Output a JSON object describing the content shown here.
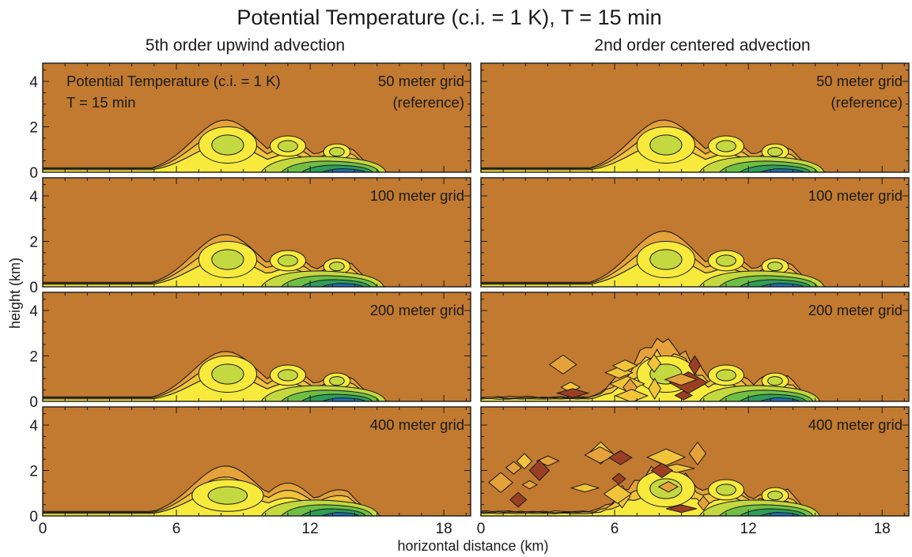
{
  "title": "Potential Temperature (c.i. = 1 K), T = 15 min",
  "columns": [
    "5th order upwind advection",
    "2nd order centered advection"
  ],
  "colors": {
    "background": "#c17a30",
    "band1": "#e6a23a",
    "band2": "#f1c43a",
    "band3": "#f8ea3c",
    "band4": "#c4d840",
    "band5": "#6fbf45",
    "band6": "#2f9e58",
    "band7": "#1f6fb3",
    "cold_anomaly": "#9b3f22",
    "contour": "#1a1a1a"
  },
  "chart_data": {
    "type": "heatmap",
    "title": "Potential Temperature (c.i. = 1 K), T = 15 min",
    "xlabel": "horizontal distance (km)",
    "ylabel": "height (km)",
    "xlim": [
      0,
      19.2
    ],
    "ylim": [
      0,
      4.8
    ],
    "xticks": [
      0,
      6,
      12,
      18
    ],
    "yticks": [
      0,
      2,
      4
    ],
    "contour_interval_K": 1,
    "panels": [
      {
        "column": "5th order upwind advection",
        "row": 0,
        "label": [
          "Potential Temperature (c.i. = 1 K)",
          "T = 15 min",
          "50 meter grid",
          "(reference)"
        ],
        "front_km": 15.5,
        "head_top_km": 2.3,
        "noisy": false
      },
      {
        "column": "2nd order centered advection",
        "row": 0,
        "label": [
          "50 meter grid",
          "(reference)"
        ],
        "front_km": 15.5,
        "head_top_km": 2.3,
        "noisy": false
      },
      {
        "column": "5th order upwind advection",
        "row": 1,
        "label": [
          "100 meter grid"
        ],
        "front_km": 15.4,
        "head_top_km": 2.3,
        "noisy": false
      },
      {
        "column": "2nd order centered advection",
        "row": 1,
        "label": [
          "100 meter grid"
        ],
        "front_km": 15.5,
        "head_top_km": 2.45,
        "noisy": false
      },
      {
        "column": "5th order upwind advection",
        "row": 2,
        "label": [
          "200 meter grid"
        ],
        "front_km": 15.5,
        "head_top_km": 2.2,
        "noisy": false
      },
      {
        "column": "2nd order centered advection",
        "row": 2,
        "label": [
          "200 meter grid"
        ],
        "front_km": 15.3,
        "head_top_km": 2.7,
        "noisy": true
      },
      {
        "column": "5th order upwind advection",
        "row": 3,
        "label": [
          "400 meter grid"
        ],
        "front_km": 15.2,
        "head_top_km": 2.2,
        "noisy": false
      },
      {
        "column": "2nd order centered advection",
        "row": 3,
        "label": [
          "400 meter grid"
        ],
        "front_km": 15.3,
        "head_top_km": 2.1,
        "noisy": true
      }
    ]
  }
}
